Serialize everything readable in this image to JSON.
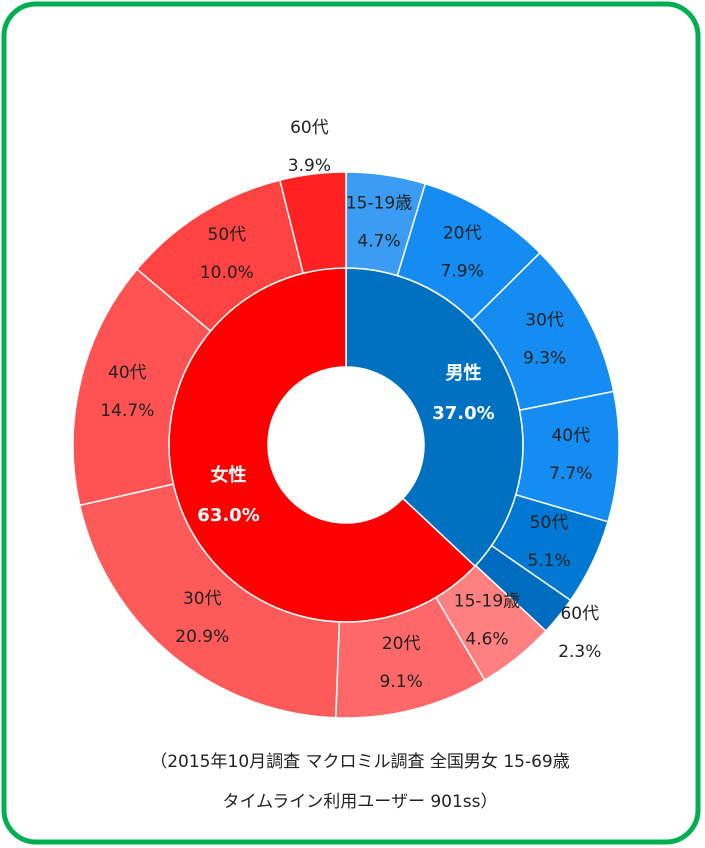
{
  "chart_data": {
    "type": "donut",
    "inner": {
      "categories": [
        "男性",
        "女性"
      ],
      "values": [
        37.0,
        63.0
      ],
      "value_labels": [
        "37.0%",
        "63.0%"
      ],
      "colors": [
        "#0070c0",
        "#ff0000"
      ]
    },
    "outer": {
      "categories": [
        "15-19歳",
        "20代",
        "30代",
        "40代",
        "50代",
        "60代",
        "15-19歳",
        "20代",
        "30代",
        "40代",
        "50代",
        "60代"
      ],
      "values": [
        4.7,
        7.9,
        9.3,
        7.7,
        5.1,
        2.3,
        4.6,
        9.1,
        20.9,
        14.7,
        10.0,
        3.9
      ],
      "value_labels": [
        "4.7%",
        "7.9%",
        "9.3%",
        "7.7%",
        "5.1%",
        "2.3%",
        "4.6%",
        "9.1%",
        "20.9%",
        "14.7%",
        "10.0%",
        "3.9%"
      ],
      "colors": [
        "#3a9cf2",
        "#148cf2",
        "#148cf2",
        "#148cf2",
        "#0078d4",
        "#006cc0",
        "#ff8080",
        "#ff6868",
        "#ff5a5a",
        "#ff5252",
        "#ff4242",
        "#ff2222"
      ]
    },
    "notes": [
      "（2015年10月調査 マクロミル調査 全国男女 15-69歳",
      "タイムライン利用ユーザー 901ss）"
    ]
  }
}
